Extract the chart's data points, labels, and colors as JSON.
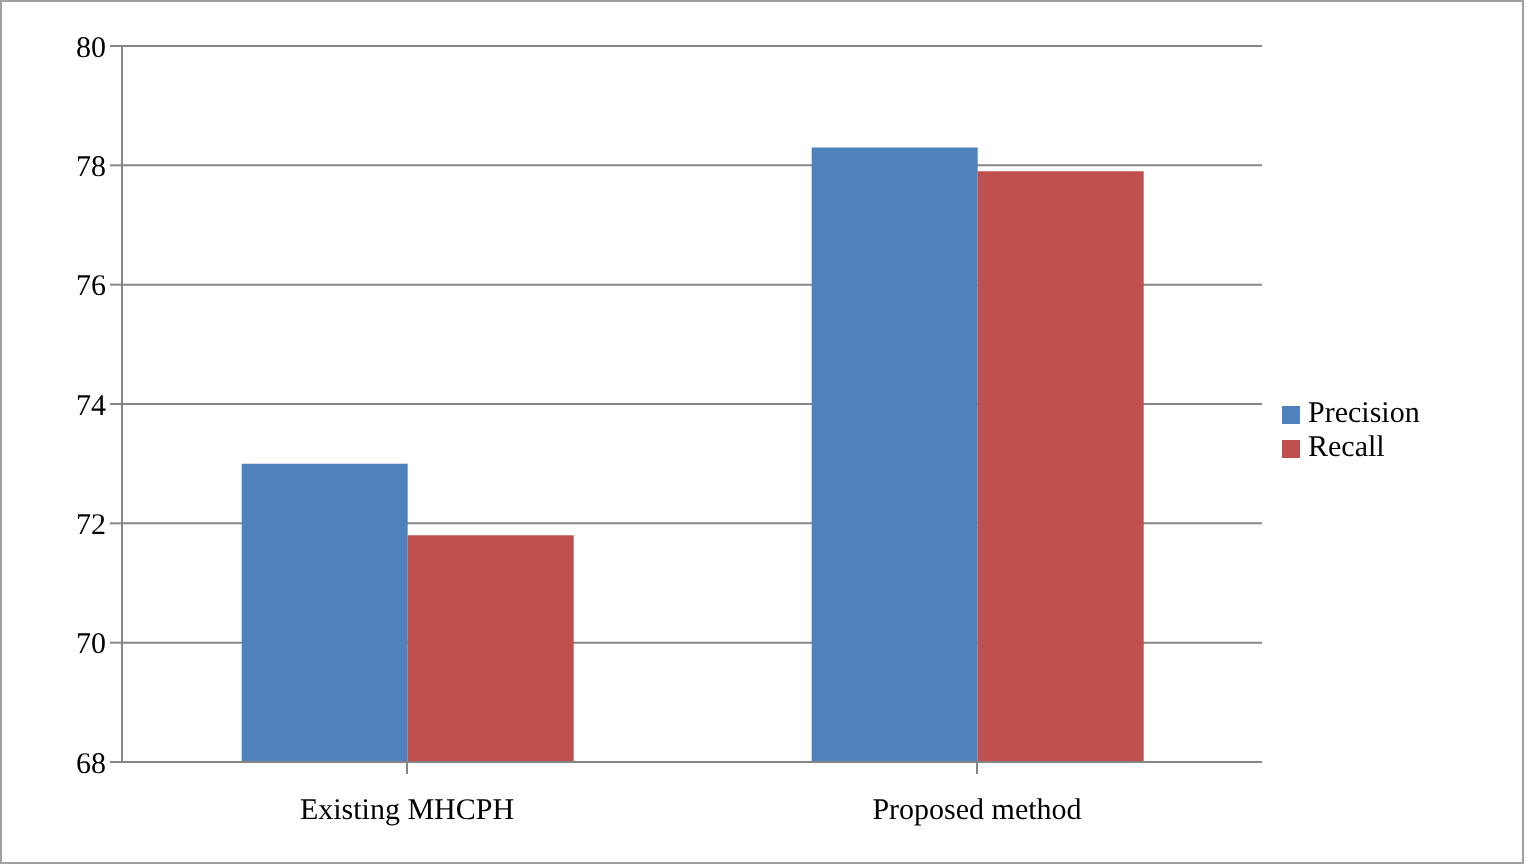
{
  "chart_data": {
    "type": "bar",
    "categories": [
      "Existing MHCPH",
      "Proposed method"
    ],
    "series": [
      {
        "name": "Precision",
        "color": "#4f81bd",
        "values": [
          73.0,
          78.3
        ]
      },
      {
        "name": "Recall",
        "color": "#c0504d",
        "values": [
          71.8,
          77.9
        ]
      }
    ],
    "ylim": [
      68,
      80
    ],
    "yticks": [
      68,
      70,
      72,
      74,
      76,
      78,
      80
    ],
    "grid": "y",
    "legend": "right"
  }
}
